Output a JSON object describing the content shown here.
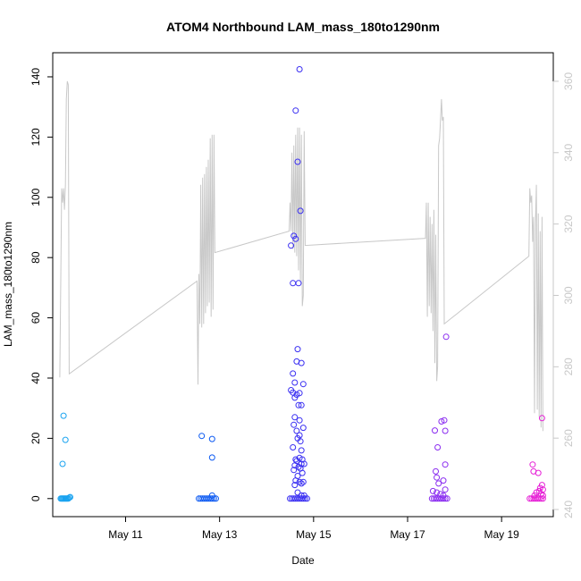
{
  "chart_data": {
    "type": "scatter",
    "title": "ATOM4 Northbound LAM_mass_180to1290nm",
    "xlabel": "Date",
    "ylabel": "LAM_mass_180to1290nm",
    "x_ticks": [
      "May 11",
      "May 13",
      "May 15",
      "May 17",
      "May 19"
    ],
    "x_tick_days": [
      11,
      13,
      15,
      17,
      19
    ],
    "xlim_days": [
      9.45,
      20.1
    ],
    "ylim": [
      -6,
      148
    ],
    "y_ticks": [
      0,
      20,
      40,
      60,
      80,
      100,
      120,
      140
    ],
    "y2_ticks": [
      240,
      260,
      280,
      300,
      320,
      340,
      360
    ],
    "y2lim": [
      238,
      368
    ],
    "grid": false,
    "series": [
      {
        "color": "#1aa3f0",
        "points": [
          [
            9.68,
            27.5
          ],
          [
            9.72,
            19.5
          ],
          [
            9.66,
            11.5
          ],
          [
            9.62,
            0
          ],
          [
            9.64,
            0
          ],
          [
            9.66,
            0
          ],
          [
            9.68,
            0
          ],
          [
            9.7,
            0
          ],
          [
            9.72,
            0
          ],
          [
            9.74,
            0
          ],
          [
            9.76,
            0
          ],
          [
            9.78,
            0
          ],
          [
            9.8,
            0.3
          ],
          [
            9.82,
            0.5
          ]
        ]
      },
      {
        "color": "#0b59f2",
        "points": [
          [
            12.62,
            20.8
          ],
          [
            12.84,
            19.8
          ],
          [
            12.84,
            13.6
          ],
          [
            12.84,
            1.0
          ],
          [
            12.56,
            0
          ],
          [
            12.6,
            0
          ],
          [
            12.64,
            0
          ],
          [
            12.68,
            0
          ],
          [
            12.72,
            0
          ],
          [
            12.76,
            0
          ],
          [
            12.8,
            0
          ],
          [
            12.84,
            0
          ],
          [
            12.88,
            0
          ],
          [
            12.92,
            0
          ]
        ]
      },
      {
        "color": "#3a2ff2",
        "points": [
          [
            14.7,
            142.5
          ],
          [
            14.62,
            128.8
          ],
          [
            14.66,
            111.8
          ],
          [
            14.72,
            95.5
          ],
          [
            14.58,
            87.2
          ],
          [
            14.62,
            86.2
          ],
          [
            14.52,
            84.0
          ],
          [
            14.56,
            71.5
          ],
          [
            14.68,
            71.5
          ],
          [
            14.66,
            49.6
          ],
          [
            14.64,
            45.5
          ],
          [
            14.74,
            45.0
          ],
          [
            14.56,
            41.5
          ],
          [
            14.6,
            38.5
          ],
          [
            14.78,
            38.0
          ],
          [
            14.52,
            36.0
          ],
          [
            14.56,
            35.2
          ],
          [
            14.7,
            35.0
          ],
          [
            14.64,
            34.5
          ],
          [
            14.6,
            33.5
          ],
          [
            14.68,
            31.0
          ],
          [
            14.74,
            31.0
          ],
          [
            14.6,
            27.0
          ],
          [
            14.7,
            26.0
          ],
          [
            14.58,
            24.5
          ],
          [
            14.78,
            23.5
          ],
          [
            14.64,
            22.5
          ],
          [
            14.7,
            21.0
          ],
          [
            14.66,
            20.0
          ],
          [
            14.72,
            19.0
          ],
          [
            14.56,
            17.0
          ],
          [
            14.74,
            16.0
          ],
          [
            14.62,
            13.0
          ],
          [
            14.7,
            13.5
          ],
          [
            14.76,
            13.0
          ],
          [
            14.64,
            12.5
          ],
          [
            14.8,
            11.5
          ],
          [
            14.74,
            11.5
          ],
          [
            14.6,
            11.0
          ],
          [
            14.68,
            10.5
          ],
          [
            14.72,
            10.0
          ],
          [
            14.58,
            9.5
          ],
          [
            14.76,
            8.5
          ],
          [
            14.66,
            7.5
          ],
          [
            14.62,
            6.0
          ],
          [
            14.7,
            5.5
          ],
          [
            14.78,
            5.5
          ],
          [
            14.74,
            5.0
          ],
          [
            14.6,
            4.5
          ],
          [
            14.66,
            2.0
          ],
          [
            14.74,
            1.0
          ],
          [
            14.8,
            1.0
          ],
          [
            14.5,
            0
          ],
          [
            14.54,
            0
          ],
          [
            14.58,
            0
          ],
          [
            14.62,
            0
          ],
          [
            14.66,
            0
          ],
          [
            14.7,
            0
          ],
          [
            14.74,
            0
          ],
          [
            14.78,
            0
          ],
          [
            14.82,
            0
          ],
          [
            14.86,
            0
          ]
        ]
      },
      {
        "color": "#8a2cf0",
        "points": [
          [
            17.82,
            53.7
          ],
          [
            17.78,
            26.0
          ],
          [
            17.72,
            25.6
          ],
          [
            17.58,
            22.6
          ],
          [
            17.8,
            22.5
          ],
          [
            17.64,
            17.0
          ],
          [
            17.8,
            11.3
          ],
          [
            17.6,
            9.0
          ],
          [
            17.62,
            7.0
          ],
          [
            17.76,
            6.0
          ],
          [
            17.66,
            5.0
          ],
          [
            17.8,
            3.0
          ],
          [
            17.54,
            2.5
          ],
          [
            17.62,
            2.0
          ],
          [
            17.7,
            1.5
          ],
          [
            17.76,
            1.0
          ],
          [
            17.52,
            0
          ],
          [
            17.56,
            0
          ],
          [
            17.6,
            0
          ],
          [
            17.64,
            0
          ],
          [
            17.68,
            0
          ],
          [
            17.72,
            0
          ],
          [
            17.76,
            0
          ],
          [
            17.8,
            0
          ],
          [
            17.84,
            0
          ]
        ]
      },
      {
        "color": "#e61fd6",
        "points": [
          [
            19.86,
            26.7
          ],
          [
            19.66,
            11.3
          ],
          [
            19.68,
            9.0
          ],
          [
            19.78,
            8.5
          ],
          [
            19.86,
            4.5
          ],
          [
            19.82,
            3.5
          ],
          [
            19.88,
            3.0
          ],
          [
            19.8,
            2.5
          ],
          [
            19.74,
            2.0
          ],
          [
            19.84,
            1.5
          ],
          [
            19.7,
            1.0
          ],
          [
            19.88,
            1.0
          ],
          [
            19.6,
            0
          ],
          [
            19.64,
            0
          ],
          [
            19.68,
            0
          ],
          [
            19.72,
            0
          ],
          [
            19.76,
            0
          ],
          [
            19.8,
            0
          ],
          [
            19.84,
            0
          ],
          [
            19.88,
            0
          ]
        ]
      }
    ],
    "line_series": {
      "color": "#c8c8c8",
      "points": [
        [
          9.6,
          277
        ],
        [
          9.64,
          330
        ],
        [
          9.66,
          326
        ],
        [
          9.68,
          330
        ],
        [
          9.7,
          324
        ],
        [
          9.72,
          331
        ],
        [
          9.74,
          355
        ],
        [
          9.76,
          360
        ],
        [
          9.78,
          359
        ],
        [
          9.8,
          278
        ],
        [
          12.52,
          304
        ],
        [
          12.54,
          275
        ],
        [
          12.56,
          306
        ],
        [
          12.58,
          292
        ],
        [
          12.6,
          331
        ],
        [
          12.62,
          291
        ],
        [
          12.64,
          333
        ],
        [
          12.66,
          292
        ],
        [
          12.68,
          334
        ],
        [
          12.7,
          295
        ],
        [
          12.72,
          336
        ],
        [
          12.74,
          297
        ],
        [
          12.76,
          338
        ],
        [
          12.78,
          298
        ],
        [
          12.8,
          344
        ],
        [
          12.82,
          294
        ],
        [
          12.84,
          345
        ],
        [
          12.86,
          296
        ],
        [
          12.88,
          345
        ],
        [
          12.9,
          312
        ],
        [
          14.48,
          318
        ],
        [
          14.5,
          326
        ],
        [
          14.52,
          318
        ],
        [
          14.54,
          340
        ],
        [
          14.56,
          313
        ],
        [
          14.58,
          342
        ],
        [
          14.6,
          312
        ],
        [
          14.62,
          345
        ],
        [
          14.64,
          311
        ],
        [
          14.66,
          347
        ],
        [
          14.68,
          307
        ],
        [
          14.7,
          347
        ],
        [
          14.72,
          304
        ],
        [
          14.74,
          345
        ],
        [
          14.76,
          297
        ],
        [
          14.78,
          300
        ],
        [
          14.8,
          346
        ],
        [
          14.82,
          314
        ],
        [
          17.38,
          316
        ],
        [
          17.4,
          326
        ],
        [
          17.42,
          294
        ],
        [
          17.44,
          326
        ],
        [
          17.46,
          297
        ],
        [
          17.48,
          322
        ],
        [
          17.5,
          295
        ],
        [
          17.52,
          320
        ],
        [
          17.54,
          290
        ],
        [
          17.56,
          324
        ],
        [
          17.58,
          281
        ],
        [
          17.6,
          317
        ],
        [
          17.62,
          276
        ],
        [
          17.64,
          280
        ],
        [
          17.66,
          342
        ],
        [
          17.68,
          344
        ],
        [
          17.7,
          349
        ],
        [
          17.72,
          355
        ],
        [
          17.74,
          349
        ],
        [
          17.76,
          350
        ],
        [
          17.78,
          292
        ],
        [
          19.58,
          311
        ],
        [
          19.6,
          330
        ],
        [
          19.62,
          326
        ],
        [
          19.64,
          328
        ],
        [
          19.66,
          315
        ],
        [
          19.68,
          322
        ],
        [
          19.7,
          267
        ],
        [
          19.72,
          320
        ],
        [
          19.74,
          331
        ],
        [
          19.76,
          268
        ],
        [
          19.78,
          323
        ],
        [
          19.8,
          266
        ],
        [
          19.82,
          318
        ],
        [
          19.84,
          263
        ],
        [
          19.86,
          322
        ],
        [
          19.88,
          262
        ]
      ]
    }
  }
}
